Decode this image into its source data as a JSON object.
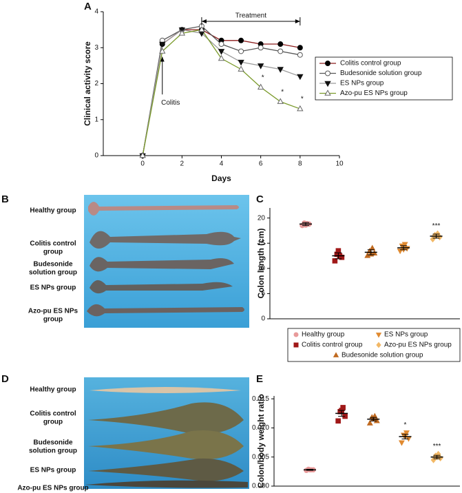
{
  "chart_data": [
    {
      "type": "line",
      "letter": "A",
      "xlabel": "Days",
      "ylabel": "Clinical activity score",
      "x": [
        0,
        1,
        2,
        3,
        4,
        5,
        6,
        7,
        8
      ],
      "xlim": [
        -2,
        10
      ],
      "xticks": [
        0,
        2,
        4,
        6,
        8,
        10
      ],
      "ylim": [
        0,
        4
      ],
      "yticks": [
        0,
        1,
        2,
        3,
        4
      ],
      "legend": "right",
      "annotations": [
        {
          "text": "Treatment",
          "x": [
            3,
            8
          ]
        },
        {
          "text": "Colitis",
          "x": 1
        }
      ],
      "series": [
        {
          "name": "Colitis control group",
          "color": "#8b1a1a",
          "marker": "circle",
          "marker_color": "#000000",
          "values": [
            0,
            3.1,
            3.5,
            3.5,
            3.2,
            3.2,
            3.1,
            3.1,
            3.0
          ]
        },
        {
          "name": "Budesonide solution group",
          "color": "#555555",
          "marker": "circle-open",
          "marker_color": "#555555",
          "values": [
            0,
            3.2,
            3.5,
            3.6,
            3.1,
            2.9,
            3.0,
            2.9,
            2.8
          ]
        },
        {
          "name": "ES NPs group",
          "color": "#999999",
          "marker": "tri-down",
          "marker_color": "#111111",
          "values": [
            0,
            3.1,
            3.5,
            3.4,
            2.9,
            2.6,
            2.5,
            2.4,
            2.2
          ]
        },
        {
          "name": "Azo-pu ES NPs group",
          "color": "#7a9a2a",
          "marker": "tri-up-open",
          "marker_color": "#666666",
          "values": [
            0,
            2.9,
            3.4,
            3.5,
            2.7,
            2.4,
            1.9,
            1.5,
            1.3
          ],
          "significance": [
            null,
            null,
            null,
            null,
            null,
            null,
            "*",
            "*",
            "*"
          ]
        }
      ]
    },
    {
      "type": "dot",
      "letter": "C",
      "ylabel": "Colon length (cm)",
      "ylim": [
        0,
        22
      ],
      "yticks": [
        0,
        5,
        10,
        15,
        20
      ],
      "series": [
        {
          "name": "Healthy group",
          "color": "#e89a9a",
          "marker": "circle",
          "points": [
            18.5,
            18.8,
            19.0,
            18.9,
            18.6
          ],
          "mean": 18.8,
          "sem": 0.3
        },
        {
          "name": "Colitis control group",
          "color": "#a01818",
          "marker": "square",
          "points": [
            11.5,
            12.2,
            12.8,
            12.5,
            13.5
          ],
          "mean": 12.5,
          "sem": 0.6
        },
        {
          "name": "Budesonide solution group",
          "color": "#c06a20",
          "marker": "tri-up",
          "points": [
            12.5,
            13.0,
            13.4,
            14.0,
            12.8
          ],
          "mean": 13.2,
          "sem": 0.5
        },
        {
          "name": "ES NPs group",
          "color": "#e08a30",
          "marker": "tri-down",
          "points": [
            13.5,
            14.0,
            14.5,
            14.8,
            13.8
          ],
          "mean": 14.1,
          "sem": 0.4
        },
        {
          "name": "Azo-pu ES NPs group",
          "color": "#f2b866",
          "marker": "diamond",
          "points": [
            15.8,
            16.2,
            16.6,
            16.9,
            16.5
          ],
          "mean": 16.4,
          "sem": 0.4,
          "significance": "***"
        }
      ]
    },
    {
      "type": "dot",
      "letter": "E",
      "ylabel": "Colon/body weight ratio",
      "ylim": [
        0,
        0.0155
      ],
      "yticks": [
        {
          "value": 0,
          "label": "0.000"
        },
        {
          "value": 0.005,
          "label": "0.005"
        },
        {
          "value": 0.01,
          "label": "0.010"
        },
        {
          "value": 0.015,
          "label": "0.015"
        }
      ],
      "series": [
        {
          "color": "#e89a9a",
          "marker": "circle",
          "points": [
            0.0027,
            0.0028,
            0.0029,
            0.0028,
            0.0028
          ],
          "mean": 0.0028,
          "sem": 0.0001
        },
        {
          "color": "#a01818",
          "marker": "square",
          "points": [
            0.0112,
            0.012,
            0.0128,
            0.0135,
            0.013
          ],
          "mean": 0.0125,
          "sem": 0.0005
        },
        {
          "color": "#c06a20",
          "marker": "tri-up",
          "points": [
            0.0108,
            0.0112,
            0.0118,
            0.012,
            0.0115
          ],
          "mean": 0.0115,
          "sem": 0.0003
        },
        {
          "color": "#e08a30",
          "marker": "tri-down",
          "points": [
            0.0075,
            0.0082,
            0.0088,
            0.0092,
            0.0086
          ],
          "mean": 0.0085,
          "sem": 0.0004,
          "significance": "*"
        },
        {
          "color": "#f2b866",
          "marker": "diamond",
          "points": [
            0.0045,
            0.0048,
            0.0052,
            0.0055,
            0.005
          ],
          "mean": 0.005,
          "sem": 0.0003,
          "significance": "***"
        }
      ]
    }
  ],
  "photos": [
    {
      "letter": "B",
      "labels": [
        [
          "Healthy group"
        ],
        [
          "Colitis control",
          "group"
        ],
        [
          "Budesonide",
          "solution group"
        ],
        [
          "ES NPs group"
        ],
        [
          "Azo-pu ES NPs",
          "group"
        ]
      ]
    },
    {
      "letter": "D",
      "labels": [
        [
          "Healthy group"
        ],
        [
          "Colitis control",
          "group"
        ],
        [
          "Budesonide",
          "solution group"
        ],
        [
          "ES NPs group"
        ],
        [
          "Azo-pu ES NPs group"
        ]
      ]
    }
  ]
}
